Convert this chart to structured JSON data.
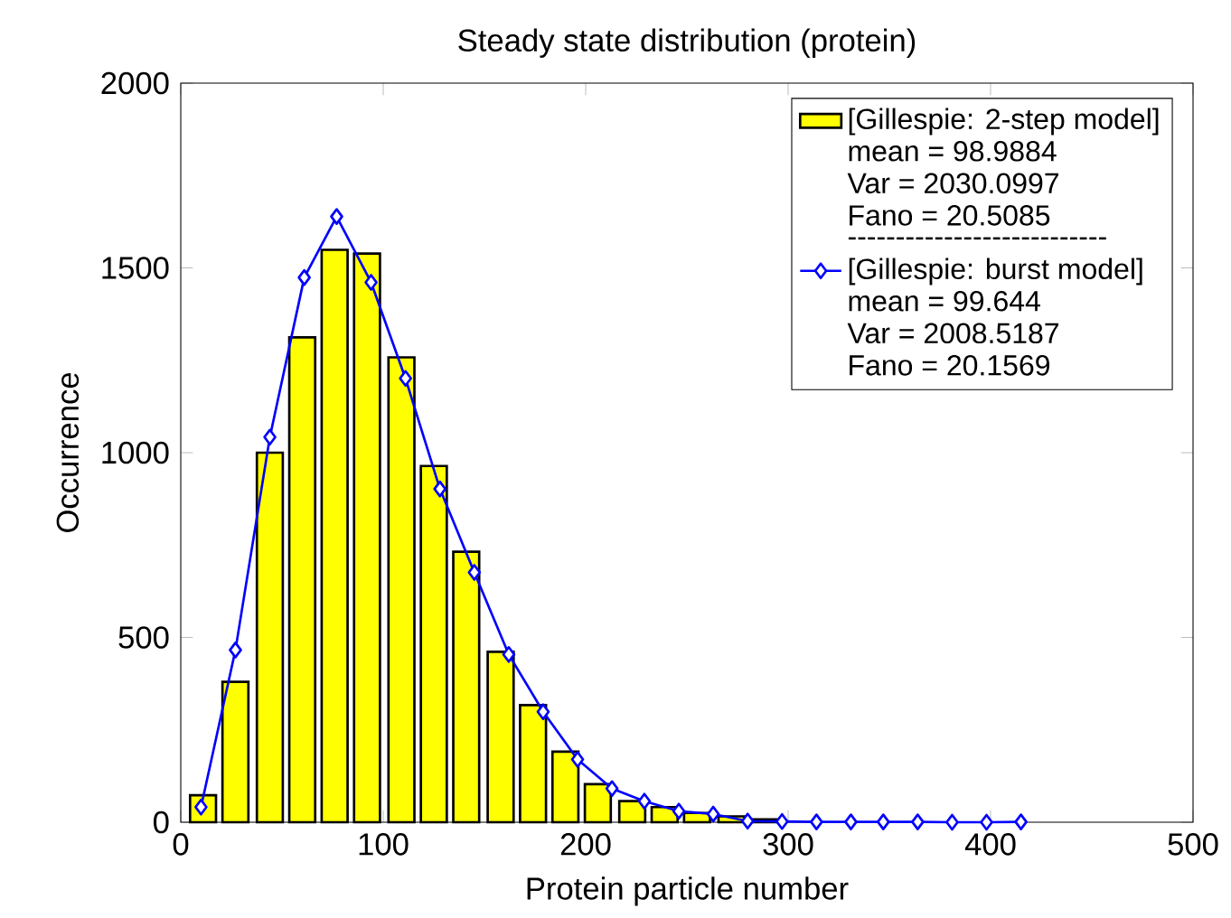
{
  "chart_data": {
    "type": "bar",
    "title": "Steady state distribution (protein)",
    "xlabel": "Protein particle number",
    "ylabel": "Occurrence",
    "xlim": [
      0,
      500
    ],
    "xticks": [
      0,
      100,
      200,
      300,
      400,
      500
    ],
    "ylim": [
      0,
      2000
    ],
    "yticks": [
      0,
      500,
      1000,
      1500,
      2000
    ],
    "legend": "top right",
    "annotations": [
      "mean = 98.9884",
      "Var = 2030.0997",
      "Fano = 20.5085",
      "---------------------------",
      "mean = 99.644",
      "Var = 2008.5187",
      "Fano = 20.1569"
    ],
    "series": [
      {
        "name": "[Gillespie: 2-step model]",
        "color": "#ffff00",
        "x": [
          11,
          27,
          44,
          60,
          76,
          92,
          109,
          125,
          141,
          158,
          174,
          190,
          206,
          223,
          239,
          255,
          272,
          288
        ],
        "values": [
          73,
          380,
          1000,
          1312,
          1549,
          1539,
          1258,
          964,
          732,
          461,
          317,
          191,
          103,
          57,
          41,
          25,
          16,
          8
        ]
      },
      {
        "name": "[Gillespie: burst model]",
        "type": "line",
        "color": "#0000ff",
        "marker": "diamond",
        "x": [
          10,
          27,
          44,
          61,
          77,
          94,
          111,
          128,
          145,
          162,
          179,
          196,
          213,
          229,
          246,
          263,
          280,
          297,
          314,
          331,
          347,
          364,
          381,
          398,
          415
        ],
        "values": [
          41,
          466,
          1042,
          1474,
          1639,
          1461,
          1201,
          902,
          676,
          454,
          299,
          170,
          91,
          57,
          30,
          22,
          3,
          2,
          1,
          1,
          1,
          1,
          0,
          0,
          1
        ]
      }
    ]
  }
}
